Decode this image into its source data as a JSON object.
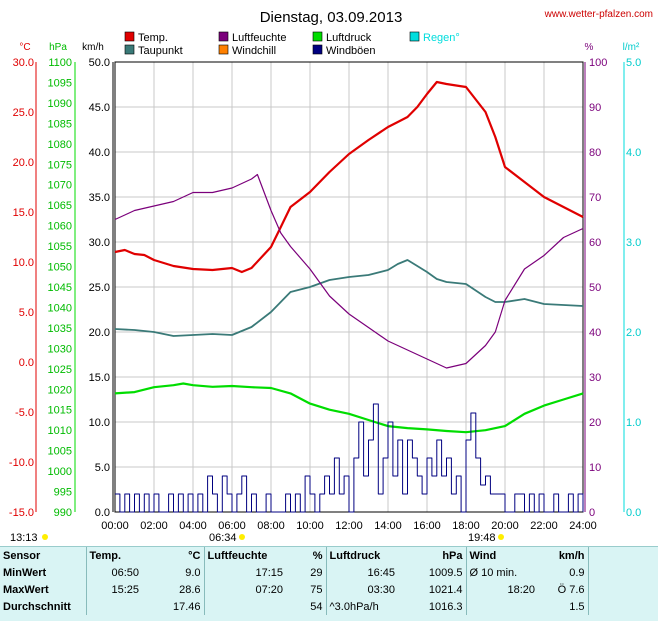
{
  "header": {
    "title": "Dienstag, 03.09.2013",
    "site": "www.wetter-pfalzen.com"
  },
  "colors": {
    "temp": "#e00000",
    "dew": "#3a7a78",
    "humidity": "#7b007b",
    "windchill": "#ff8000",
    "pressure": "#00dd00",
    "gusts": "#000080",
    "rain": "#00dddd",
    "grid": "#c8c8c8"
  },
  "legend": [
    {
      "label": "Temp.",
      "color": "#e00000"
    },
    {
      "label": "Luftfeuchte",
      "color": "#7b007b"
    },
    {
      "label": "Luftdruck",
      "color": "#00dd00"
    },
    {
      "label": "Regen°",
      "color": "#00dddd"
    },
    {
      "label": "Taupunkt",
      "color": "#3a7a78"
    },
    {
      "label": "Windchill",
      "color": "#ff8000"
    },
    {
      "label": "Windböen",
      "color": "#000080"
    }
  ],
  "axis_units": {
    "temp": "°C",
    "pressure": "hPa",
    "wind": "km/h",
    "humidity": "%",
    "rain": "l/m²"
  },
  "sun": {
    "sunrise": "06:34",
    "sunset": "19:48",
    "start": "13:13"
  },
  "chart_data": {
    "type": "line",
    "x_range_hours": [
      0,
      24
    ],
    "x_ticks": [
      "00:00",
      "02:00",
      "04:00",
      "06:00",
      "08:00",
      "10:00",
      "12:00",
      "14:00",
      "16:00",
      "18:00",
      "20:00",
      "22:00",
      "24:00"
    ],
    "axes": {
      "temp": {
        "unit": "°C",
        "range": [
          -15,
          30
        ],
        "ticks": [
          "30.0",
          "25.0",
          "20.0",
          "15.0",
          "10.0",
          "5.0",
          "0.0",
          "-5.0",
          "-10.0",
          "-15.0"
        ]
      },
      "pressure": {
        "unit": "hPa",
        "range": [
          990,
          1100
        ],
        "ticks": [
          "1100",
          "1095",
          "1090",
          "1085",
          "1080",
          "1075",
          "1070",
          "1065",
          "1060",
          "1055",
          "1050",
          "1045",
          "1040",
          "1035",
          "1030",
          "1025",
          "1020",
          "1015",
          "1010",
          "1005",
          "1000",
          "995",
          "990"
        ]
      },
      "wind": {
        "unit": "km/h",
        "range": [
          0,
          50
        ],
        "ticks": [
          "50.0",
          "45.0",
          "40.0",
          "35.0",
          "30.0",
          "25.0",
          "20.0",
          "15.0",
          "10.0",
          "5.0",
          "0.0"
        ]
      },
      "humidity": {
        "unit": "%",
        "range": [
          0,
          100
        ],
        "ticks": [
          "100",
          "90",
          "80",
          "70",
          "60",
          "50",
          "40",
          "30",
          "20",
          "10",
          "0"
        ]
      },
      "rain": {
        "unit": "l/m²",
        "range": [
          0,
          5
        ],
        "ticks": [
          "5.0",
          "4.0",
          "3.0",
          "2.0",
          "1.0",
          "0.0"
        ]
      }
    },
    "series": [
      {
        "name": "Temp.",
        "axis": "temp",
        "x": [
          0,
          0.5,
          1,
          1.5,
          2,
          3,
          4,
          5,
          6,
          6.5,
          7,
          8,
          8.5,
          9,
          10,
          11,
          12,
          13,
          14,
          14.5,
          15,
          15.5,
          16,
          16.5,
          17,
          18,
          19,
          19.5,
          20,
          21,
          22,
          23,
          24
        ],
        "y": [
          11.0,
          11.2,
          10.8,
          10.7,
          10.2,
          9.6,
          9.3,
          9.2,
          9.4,
          9.0,
          9.4,
          11.5,
          13.5,
          15.5,
          17.0,
          19.0,
          20.8,
          22.2,
          23.5,
          24.0,
          24.5,
          25.5,
          26.8,
          28.0,
          27.8,
          27.5,
          25.0,
          22.5,
          19.5,
          18.0,
          16.5,
          15.5,
          14.5
        ]
      },
      {
        "name": "Taupunkt",
        "axis": "temp",
        "x": [
          0,
          1,
          2,
          3,
          4,
          5,
          6,
          7,
          8,
          9,
          10,
          11,
          12,
          13,
          14,
          14.5,
          15,
          15.5,
          16,
          16.5,
          17,
          18,
          19,
          19.5,
          20,
          21,
          22,
          23,
          24
        ],
        "y": [
          3.3,
          3.2,
          3.0,
          2.6,
          2.7,
          2.8,
          2.7,
          3.5,
          5.0,
          7.0,
          7.5,
          8.2,
          8.5,
          8.7,
          9.2,
          9.8,
          10.2,
          9.6,
          9.0,
          8.3,
          8.0,
          7.8,
          6.5,
          6.0,
          6.0,
          6.3,
          5.8,
          5.7,
          5.6
        ]
      },
      {
        "name": "Luftfeuchte",
        "axis": "humidity",
        "x": [
          0,
          0.5,
          1,
          2,
          3,
          4,
          5,
          6,
          6.5,
          7,
          7.3,
          8,
          8.5,
          9,
          10,
          11,
          12,
          13,
          14,
          15,
          16,
          17,
          18,
          19,
          19.5,
          20,
          21,
          22,
          23,
          24
        ],
        "y": [
          65,
          66,
          67,
          68,
          69,
          71,
          71,
          72,
          73,
          74,
          75,
          67,
          62,
          59,
          54,
          48,
          44,
          41,
          38,
          36,
          34,
          32,
          33,
          37,
          40,
          47,
          54,
          57,
          61,
          63
        ]
      },
      {
        "name": "Luftdruck",
        "axis": "pressure",
        "x": [
          0,
          1,
          2,
          3,
          3.5,
          4,
          5,
          6,
          7,
          8,
          9,
          10,
          11,
          12,
          13,
          14,
          15,
          16,
          17,
          18,
          19,
          20,
          21,
          22,
          23,
          24
        ],
        "y": [
          1019.0,
          1019.3,
          1020.5,
          1021.0,
          1021.4,
          1021.0,
          1020.6,
          1020.8,
          1020.5,
          1020.3,
          1019.0,
          1016.5,
          1015.0,
          1014.0,
          1012.5,
          1011.0,
          1010.5,
          1010.2,
          1009.8,
          1009.5,
          1010.0,
          1011.0,
          1014.0,
          1016.0,
          1017.5,
          1019.0
        ]
      },
      {
        "name": "Windböen",
        "axis": "wind",
        "sample_step_hours": 0.25,
        "values": [
          2,
          0,
          2,
          0,
          2,
          0,
          2,
          0,
          2,
          0,
          0,
          2,
          0,
          2,
          0,
          2,
          0,
          2,
          0,
          4,
          2,
          0,
          4,
          2,
          0,
          2,
          4,
          0,
          2,
          0,
          0,
          2,
          0,
          0,
          0,
          2,
          0,
          2,
          0,
          4,
          2,
          0,
          2,
          4,
          2,
          6,
          2,
          4,
          0,
          6,
          10,
          4,
          8,
          12,
          2,
          6,
          10,
          4,
          8,
          2,
          8,
          6,
          4,
          2,
          6,
          4,
          8,
          4,
          6,
          2,
          4,
          0,
          8,
          11,
          6,
          3,
          4,
          2,
          2,
          2,
          0,
          0,
          2,
          2,
          0,
          2,
          0,
          2,
          0,
          0,
          2,
          0,
          0,
          2,
          0,
          2,
          0
        ]
      }
    ]
  },
  "stats": {
    "headers": [
      "Sensor",
      "Temp.",
      "°C",
      "Luftfeuchte",
      "%",
      "Luftdruck",
      "hPa",
      "Wind",
      "km/h"
    ],
    "rows": [
      {
        "label": "MinWert",
        "t_time": "06:50",
        "t_val": "9.0",
        "h_time": "17:15",
        "h_val": "29",
        "p_time": "16:45",
        "p_val": "1009.5",
        "w_time": "Ø 10 min.",
        "w_val": "0.9"
      },
      {
        "label": "MaxWert",
        "t_time": "15:25",
        "t_val": "28.6",
        "h_time": "07:20",
        "h_val": "75",
        "p_time": "03:30",
        "p_val": "1021.4",
        "w_time": "18:20",
        "w_val": "Ö 7.6"
      },
      {
        "label": "Durchschnitt",
        "t_time": "",
        "t_val": "17.46",
        "h_time": "",
        "h_val": "54",
        "p_time": "^3.0hPa/h",
        "p_val": "1016.3",
        "w_time": "",
        "w_val": "1.5"
      }
    ]
  }
}
